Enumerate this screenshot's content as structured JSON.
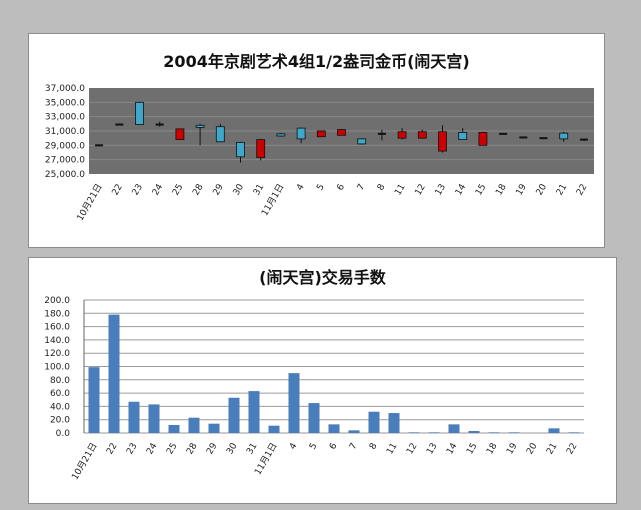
{
  "chart_data": [
    {
      "type": "candlestick",
      "title": "2004年京剧艺术4组1/2盎司金币(闹天宫)",
      "categories": [
        "10月21日",
        "22",
        "23",
        "24",
        "25",
        "28",
        "29",
        "30",
        "31",
        "11月1日",
        "4",
        "5",
        "6",
        "7",
        "8",
        "11",
        "12",
        "13",
        "14",
        "15",
        "18",
        "19",
        "20",
        "21",
        "22"
      ],
      "ylim": [
        25000,
        37000
      ],
      "yticks": [
        "25,000.0",
        "27,000.0",
        "29,000.0",
        "31,000.0",
        "33,000.0",
        "35,000.0",
        "37,000.0"
      ],
      "ohlc": [
        {
          "open": 29000,
          "high": 29000,
          "low": 29000,
          "close": 29000
        },
        {
          "open": 31900,
          "high": 31900,
          "low": 31900,
          "close": 31900
        },
        {
          "open": 31900,
          "high": 35100,
          "low": 31900,
          "close": 35000
        },
        {
          "open": 31800,
          "high": 32300,
          "low": 31600,
          "close": 31900
        },
        {
          "open": 31300,
          "high": 31300,
          "low": 29800,
          "close": 29800
        },
        {
          "open": 31500,
          "high": 32000,
          "low": 29000,
          "close": 31800
        },
        {
          "open": 29500,
          "high": 32000,
          "low": 29500,
          "close": 31600
        },
        {
          "open": 27400,
          "high": 29500,
          "low": 26600,
          "close": 29400
        },
        {
          "open": 29800,
          "high": 29800,
          "low": 26900,
          "close": 27300
        },
        {
          "open": 30300,
          "high": 30700,
          "low": 30200,
          "close": 30600
        },
        {
          "open": 29900,
          "high": 31500,
          "low": 29300,
          "close": 31400
        },
        {
          "open": 31000,
          "high": 31000,
          "low": 30200,
          "close": 30200
        },
        {
          "open": 31200,
          "high": 31300,
          "low": 30400,
          "close": 30400
        },
        {
          "open": 29200,
          "high": 30000,
          "low": 29100,
          "close": 29900
        },
        {
          "open": 30400,
          "high": 31200,
          "low": 29700,
          "close": 30600
        },
        {
          "open": 30900,
          "high": 31400,
          "low": 29800,
          "close": 30000
        },
        {
          "open": 30900,
          "high": 31200,
          "low": 29900,
          "close": 30000
        },
        {
          "open": 30900,
          "high": 31800,
          "low": 28000,
          "close": 28200
        },
        {
          "open": 29800,
          "high": 31400,
          "low": 29800,
          "close": 30800
        },
        {
          "open": 30800,
          "high": 30900,
          "low": 29000,
          "close": 29000
        },
        {
          "open": 30600,
          "high": 30600,
          "low": 30600,
          "close": 30600
        },
        {
          "open": 30100,
          "high": 30100,
          "low": 30100,
          "close": 30100
        },
        {
          "open": 30000,
          "high": 30000,
          "low": 30000,
          "close": 30000
        },
        {
          "open": 29900,
          "high": 30900,
          "low": 29500,
          "close": 30700
        },
        {
          "open": 29700,
          "high": 29900,
          "low": 29600,
          "close": 29800
        }
      ],
      "colors": {
        "up": "#3fa7c9",
        "down": "#cc0000",
        "plot_bg": "#6f6f6f",
        "grid": "#8a8a8a"
      }
    },
    {
      "type": "bar",
      "title": "(闹天宫)交易手数",
      "categories": [
        "10月21日",
        "22",
        "23",
        "24",
        "25",
        "28",
        "29",
        "30",
        "31",
        "11月1日",
        "4",
        "5",
        "6",
        "7",
        "8",
        "11",
        "12",
        "13",
        "14",
        "15",
        "18",
        "19",
        "20",
        "21",
        "22"
      ],
      "values": [
        99,
        178,
        47,
        43,
        12,
        23,
        14,
        53,
        63,
        11,
        90,
        45,
        13,
        4,
        32,
        30,
        1,
        1,
        13,
        3,
        1,
        1,
        0,
        7,
        1
      ],
      "ylim": [
        0,
        200
      ],
      "yticks": [
        "0.0",
        "20.0",
        "40.0",
        "60.0",
        "80.0",
        "100.0",
        "120.0",
        "140.0",
        "160.0",
        "180.0",
        "200.0"
      ],
      "grid": true,
      "colors": {
        "bar": "#4a7dbb",
        "grid": "#9a9a9a"
      }
    }
  ]
}
